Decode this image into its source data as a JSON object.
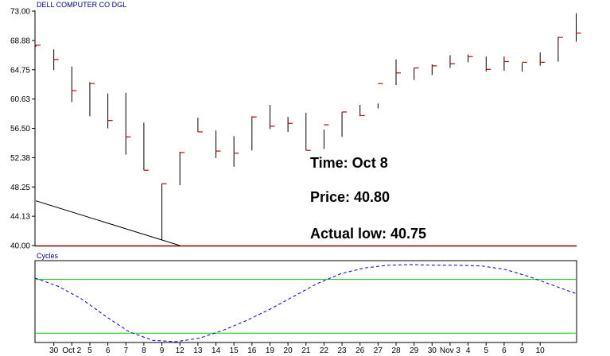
{
  "chart_data": {
    "type": "ohlc",
    "title": "DELL COMPUTER CO  DGL",
    "ylim": [
      40.0,
      73.0
    ],
    "y_ticks": [
      "73.00",
      "68.88",
      "64.75",
      "60.63",
      "56.50",
      "52.38",
      "48.25",
      "44.13",
      "40.00"
    ],
    "x_tick_labels": [
      "30",
      "Oct 2",
      "5",
      "6",
      "7",
      "8",
      "9",
      "12",
      "13",
      "14",
      "15",
      "16",
      "19",
      "20",
      "21",
      "22",
      "23",
      "26",
      "27",
      "28",
      "29",
      "30",
      "Nov 3",
      "4",
      "5",
      "6",
      "9",
      "10"
    ],
    "bars": [
      {
        "high": 68.2,
        "low": 68.0,
        "close": 68.2
      },
      {
        "high": 67.6,
        "low": 64.7,
        "close": 66.2
      },
      {
        "high": 65.2,
        "low": 60.2,
        "close": 61.8
      },
      {
        "high": 63.0,
        "low": 58.2,
        "close": 62.8
      },
      {
        "high": 61.4,
        "low": 56.5,
        "close": 57.6
      },
      {
        "high": 61.5,
        "low": 52.8,
        "close": 55.3
      },
      {
        "high": 57.3,
        "low": 50.6,
        "close": 50.6
      },
      {
        "high": 48.7,
        "low": 40.8,
        "close": 48.7
      },
      {
        "high": 53.2,
        "low": 48.5,
        "close": 53.1
      },
      {
        "high": 58.0,
        "low": 56.0,
        "close": 56.0
      },
      {
        "high": 56.2,
        "low": 52.3,
        "close": 53.3
      },
      {
        "high": 55.4,
        "low": 51.1,
        "close": 53.0
      },
      {
        "high": 58.2,
        "low": 53.4,
        "close": 58.1
      },
      {
        "high": 59.8,
        "low": 56.4,
        "close": 56.8
      },
      {
        "high": 58.1,
        "low": 56.0,
        "close": 57.2
      },
      {
        "high": 58.7,
        "low": 53.4,
        "close": 53.4
      },
      {
        "high": 56.3,
        "low": 53.6,
        "close": 57.0
      },
      {
        "high": 58.8,
        "low": 55.3,
        "close": 58.8
      },
      {
        "high": 59.8,
        "low": 58.2,
        "close": 58.3
      },
      {
        "high": 60.0,
        "low": 59.3,
        "close": 62.8
      },
      {
        "high": 66.2,
        "low": 62.6,
        "close": 64.3
      },
      {
        "high": 65.0,
        "low": 63.3,
        "close": 65.0
      },
      {
        "high": 65.5,
        "low": 64.0,
        "close": 65.3
      },
      {
        "high": 66.8,
        "low": 65.0,
        "close": 65.6
      },
      {
        "high": 66.9,
        "low": 65.8,
        "close": 66.6
      },
      {
        "high": 66.6,
        "low": 64.5,
        "close": 64.8
      },
      {
        "high": 66.6,
        "low": 64.6,
        "close": 65.9
      },
      {
        "high": 65.7,
        "low": 64.5,
        "close": 65.8
      },
      {
        "high": 67.2,
        "low": 65.3,
        "close": 65.8
      },
      {
        "high": 69.4,
        "low": 65.9,
        "close": 69.3
      },
      {
        "high": 72.7,
        "low": 68.7,
        "close": 69.9
      }
    ],
    "trendline": {
      "x1": 0,
      "y1": 46.3,
      "x2": 8,
      "y2": 40.0
    },
    "annotations": [
      "Time: Oct 8",
      "Price: 40.80",
      "Actual low: 40.75"
    ],
    "cycles": {
      "label": "Cycles",
      "values": [
        0.9,
        0.78,
        0.6,
        0.36,
        0.14,
        0.02,
        0.0,
        0.05,
        0.16,
        0.3,
        0.46,
        0.64,
        0.82,
        0.96,
        1.04,
        1.08,
        1.09,
        1.08,
        1.08,
        1.07,
        1.02,
        0.92,
        0.8,
        0.68
      ],
      "bands": [
        0.88,
        0.12
      ]
    },
    "colors": {
      "bar": "#000000",
      "close_tick": "#cc0000",
      "frame": "#800000",
      "title": "#000080",
      "cycle_line": "#0000cc",
      "band_line": "#00cc00"
    },
    "grid": false
  }
}
